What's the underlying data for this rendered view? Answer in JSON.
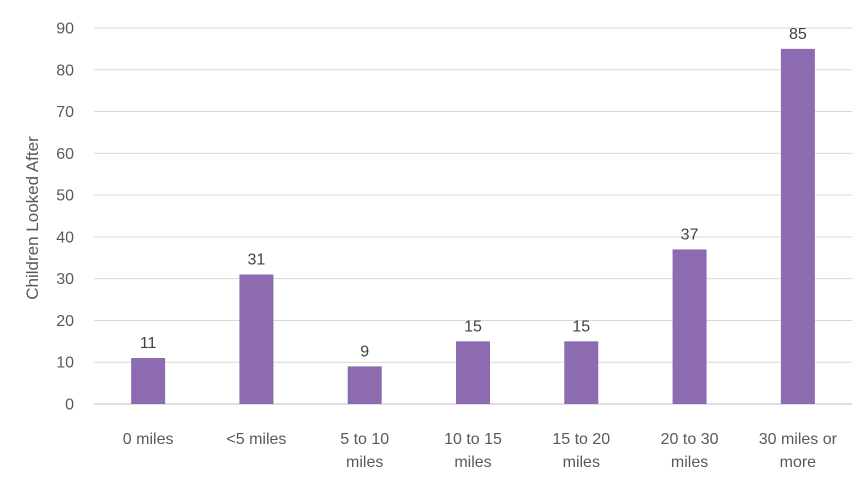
{
  "chart_data": {
    "type": "bar",
    "title": "",
    "xlabel": "",
    "ylabel": "Children Looked After",
    "categories": [
      [
        "0 miles"
      ],
      [
        "<5 miles"
      ],
      [
        "5 to 10",
        "miles"
      ],
      [
        "10 to 15",
        "miles"
      ],
      [
        "15 to 20",
        "miles"
      ],
      [
        "20 to 30",
        "miles"
      ],
      [
        "30 miles or",
        "more"
      ]
    ],
    "values": [
      11,
      31,
      9,
      15,
      15,
      37,
      85
    ],
    "ylim": [
      0,
      90
    ],
    "yticks": [
      0,
      10,
      20,
      30,
      40,
      50,
      60,
      70,
      80,
      90
    ],
    "grid": true,
    "legend": "none",
    "bar_color": "#8C6BB1"
  }
}
